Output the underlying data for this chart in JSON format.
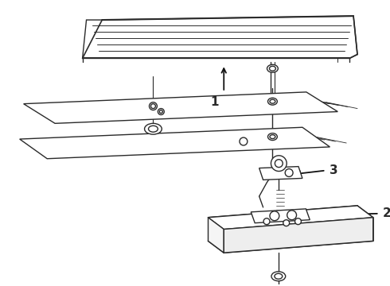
{
  "background_color": "#ffffff",
  "line_color": "#2a2a2a",
  "line_width": 1.0,
  "fig_width": 4.9,
  "fig_height": 3.6,
  "dpi": 100,
  "label_1": [
    0.38,
    0.62
  ],
  "label_2": [
    0.75,
    0.36
  ],
  "label_3": [
    0.82,
    0.51
  ],
  "arrow_color": "#111111"
}
